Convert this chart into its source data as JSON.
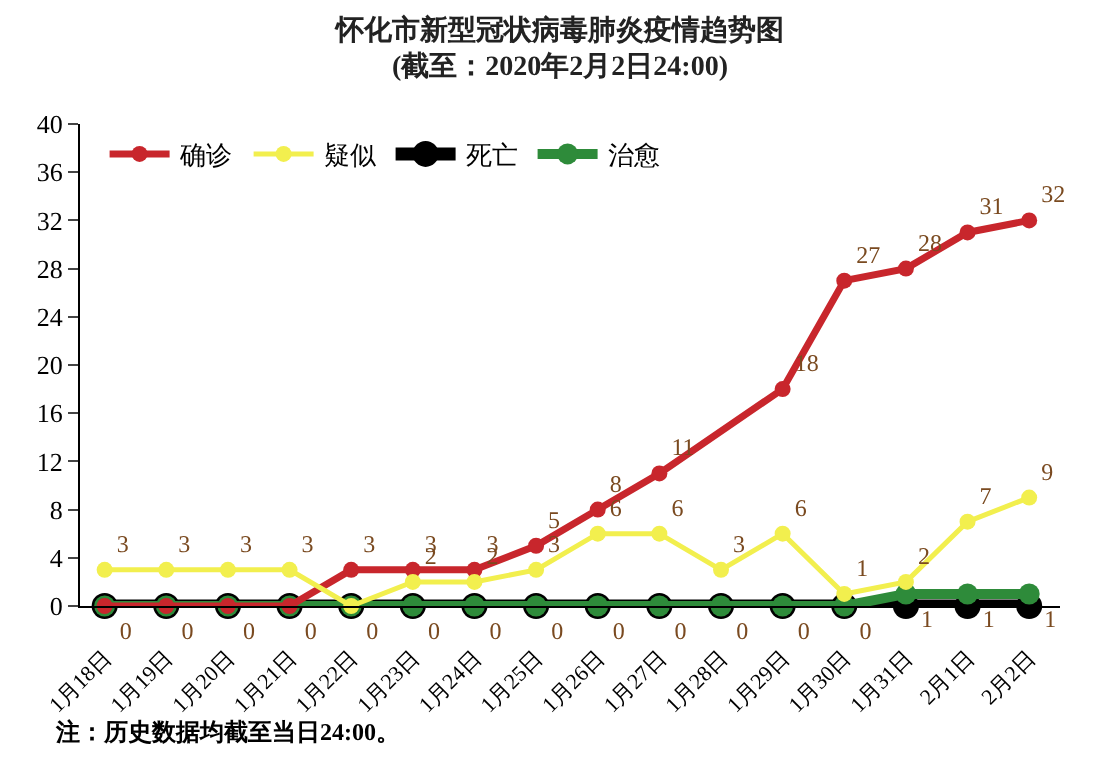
{
  "chart_data": {
    "type": "line",
    "title": "怀化市新型冠状病毒肺炎疫情趋势图",
    "subtitle": "(截至：2020年2月2日24:00)",
    "categories": [
      "1月18日",
      "1月19日",
      "1月20日",
      "1月21日",
      "1月22日",
      "1月23日",
      "1月24日",
      "1月25日",
      "1月26日",
      "1月27日",
      "1月28日",
      "1月29日",
      "1月30日",
      "1月31日",
      "2月1日",
      "2月2日"
    ],
    "series": [
      {
        "name": "确诊",
        "color": "#c8262c",
        "values": [
          0,
          0,
          0,
          0,
          3,
          3,
          3,
          5,
          8,
          11,
          null,
          18,
          27,
          28,
          31,
          32
        ],
        "value_labels": [
          null,
          null,
          null,
          null,
          "3",
          "3",
          "3",
          "5",
          "8",
          "11",
          null,
          "18",
          "27",
          "28",
          "31",
          "32"
        ]
      },
      {
        "name": "疑似",
        "color": "#f2ef4e",
        "values": [
          3,
          3,
          3,
          3,
          0,
          2,
          2,
          3,
          6,
          6,
          3,
          6,
          1,
          2,
          7,
          9
        ],
        "value_labels": [
          "3",
          "3",
          "3",
          "3",
          null,
          "2",
          "2",
          "3",
          "6",
          "6",
          "3",
          "6",
          "1",
          "2",
          "7",
          "9"
        ]
      },
      {
        "name": "死亡",
        "color": "#000000",
        "values": [
          0,
          0,
          0,
          0,
          0,
          0,
          0,
          0,
          0,
          0,
          0,
          0,
          0,
          0,
          0,
          0
        ]
      },
      {
        "name": "治愈",
        "color": "#2e8b3a",
        "values": [
          0,
          0,
          0,
          0,
          0,
          0,
          0,
          0,
          0,
          0,
          0,
          0,
          0,
          1,
          1,
          1
        ],
        "value_labels": [
          "0",
          "0",
          "0",
          "0",
          "0",
          "0",
          "0",
          "0",
          "0",
          "0",
          "0",
          "0",
          "0",
          "1",
          "1",
          "1"
        ]
      }
    ],
    "ylim": [
      0,
      40
    ],
    "yticks": [
      0,
      4,
      8,
      12,
      16,
      20,
      24,
      28,
      32,
      36,
      40
    ],
    "grid": false,
    "legend": "top",
    "marker": "circle",
    "line_style": "solid",
    "annotations": [
      "注：历史数据均截至当日24:00。"
    ]
  }
}
